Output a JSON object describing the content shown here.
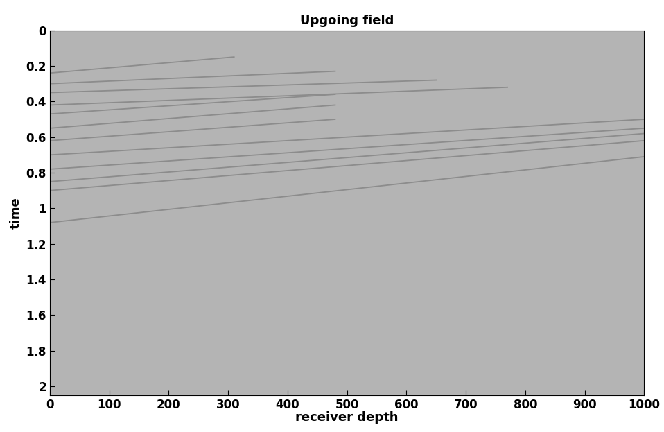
{
  "chart_data": {
    "type": "line",
    "title": "Upgoing field",
    "x_label": "receiver depth",
    "y_label": "time",
    "xlim": [
      0,
      1000
    ],
    "xticks": [
      0,
      100,
      200,
      300,
      400,
      500,
      600,
      700,
      800,
      900,
      1000
    ],
    "ylim": [
      2.05,
      0
    ],
    "yticks": [
      0,
      0.2,
      0.4,
      0.6,
      0.8,
      1,
      1.2,
      1.4,
      1.6,
      1.8,
      2
    ],
    "grid": false,
    "series": [
      {
        "color": "#8c8c8c",
        "x": [
          0,
          310
        ],
        "values": [
          0.24,
          0.15
        ]
      },
      {
        "color": "#8c8c8c",
        "x": [
          0,
          480
        ],
        "values": [
          0.3,
          0.23
        ]
      },
      {
        "color": "#8c8c8c",
        "x": [
          0,
          650
        ],
        "values": [
          0.35,
          0.28
        ]
      },
      {
        "color": "#8c8c8c",
        "x": [
          0,
          770
        ],
        "values": [
          0.42,
          0.32
        ]
      },
      {
        "color": "#8c8c8c",
        "x": [
          0,
          480
        ],
        "values": [
          0.47,
          0.36
        ]
      },
      {
        "color": "#8c8c8c",
        "x": [
          0,
          480
        ],
        "values": [
          0.55,
          0.42
        ]
      },
      {
        "color": "#8c8c8c",
        "x": [
          0,
          480
        ],
        "values": [
          0.62,
          0.5
        ]
      },
      {
        "color": "#8c8c8c",
        "x": [
          0,
          1000
        ],
        "values": [
          0.7,
          0.5
        ]
      },
      {
        "color": "#8c8c8c",
        "x": [
          0,
          1000
        ],
        "values": [
          0.78,
          0.55
        ]
      },
      {
        "color": "#8c8c8c",
        "x": [
          0,
          1000
        ],
        "values": [
          0.85,
          0.58
        ]
      },
      {
        "color": "#8c8c8c",
        "x": [
          0,
          1000
        ],
        "values": [
          0.9,
          0.62
        ]
      },
      {
        "color": "#8c8c8c",
        "x": [
          0,
          1000
        ],
        "values": [
          1.08,
          0.71
        ]
      }
    ]
  }
}
